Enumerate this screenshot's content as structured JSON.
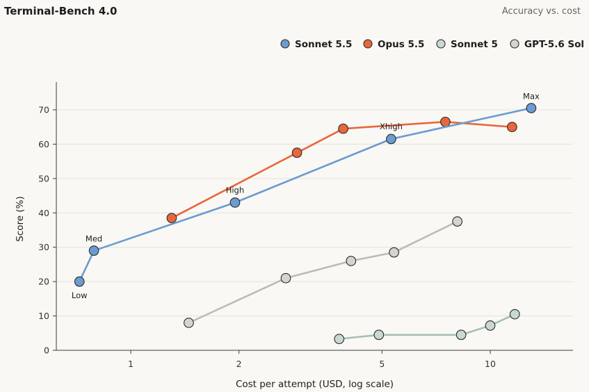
{
  "header": {
    "title": "Terminal-Bench 4.0",
    "subtitle": "Accuracy vs. cost"
  },
  "chart_data": {
    "type": "scatter",
    "xlabel": "Cost per attempt (USD, log scale)",
    "ylabel": "Score (%)",
    "x_scale": "log",
    "xlim": [
      0.5,
      17
    ],
    "ylim": [
      0,
      72
    ],
    "x_ticks": [
      1,
      2,
      5,
      10
    ],
    "y_ticks": [
      0,
      10,
      20,
      30,
      40,
      50,
      60,
      70
    ],
    "grid": "horizontal",
    "legend_position": "top-right",
    "series": [
      {
        "name": "Sonnet 5.5",
        "color": "#6b9bd1",
        "line_color": "#6b9bd1",
        "points": [
          {
            "x": 0.72,
            "y": 20,
            "label": "Low"
          },
          {
            "x": 0.79,
            "y": 29,
            "label": "Med"
          },
          {
            "x": 1.95,
            "y": 43,
            "label": "High"
          },
          {
            "x": 5.3,
            "y": 61.5,
            "label": "Xhigh"
          },
          {
            "x": 13.0,
            "y": 70.5,
            "label": "Max"
          }
        ]
      },
      {
        "name": "Opus 5.5",
        "color": "#e8673c",
        "line_color": "#e8673c",
        "points": [
          {
            "x": 1.3,
            "y": 38.5
          },
          {
            "x": 2.9,
            "y": 57.5
          },
          {
            "x": 3.9,
            "y": 64.5
          },
          {
            "x": 7.5,
            "y": 66.5
          },
          {
            "x": 11.5,
            "y": 65
          }
        ]
      },
      {
        "name": "Sonnet 5",
        "color": "#c9d8d0",
        "line_color": "#a6bfb4",
        "points": [
          {
            "x": 3.8,
            "y": 3.3
          },
          {
            "x": 4.9,
            "y": 4.5
          },
          {
            "x": 8.3,
            "y": 4.5
          },
          {
            "x": 10.0,
            "y": 7.2
          },
          {
            "x": 11.7,
            "y": 10.5
          }
        ]
      },
      {
        "name": "GPT-5.6 Sol",
        "color": "#d6d4cc",
        "line_color": "#bdbbb2",
        "points": [
          {
            "x": 1.45,
            "y": 8
          },
          {
            "x": 2.7,
            "y": 21
          },
          {
            "x": 4.1,
            "y": 26
          },
          {
            "x": 5.4,
            "y": 28.5
          },
          {
            "x": 8.1,
            "y": 37.5
          }
        ]
      }
    ]
  }
}
